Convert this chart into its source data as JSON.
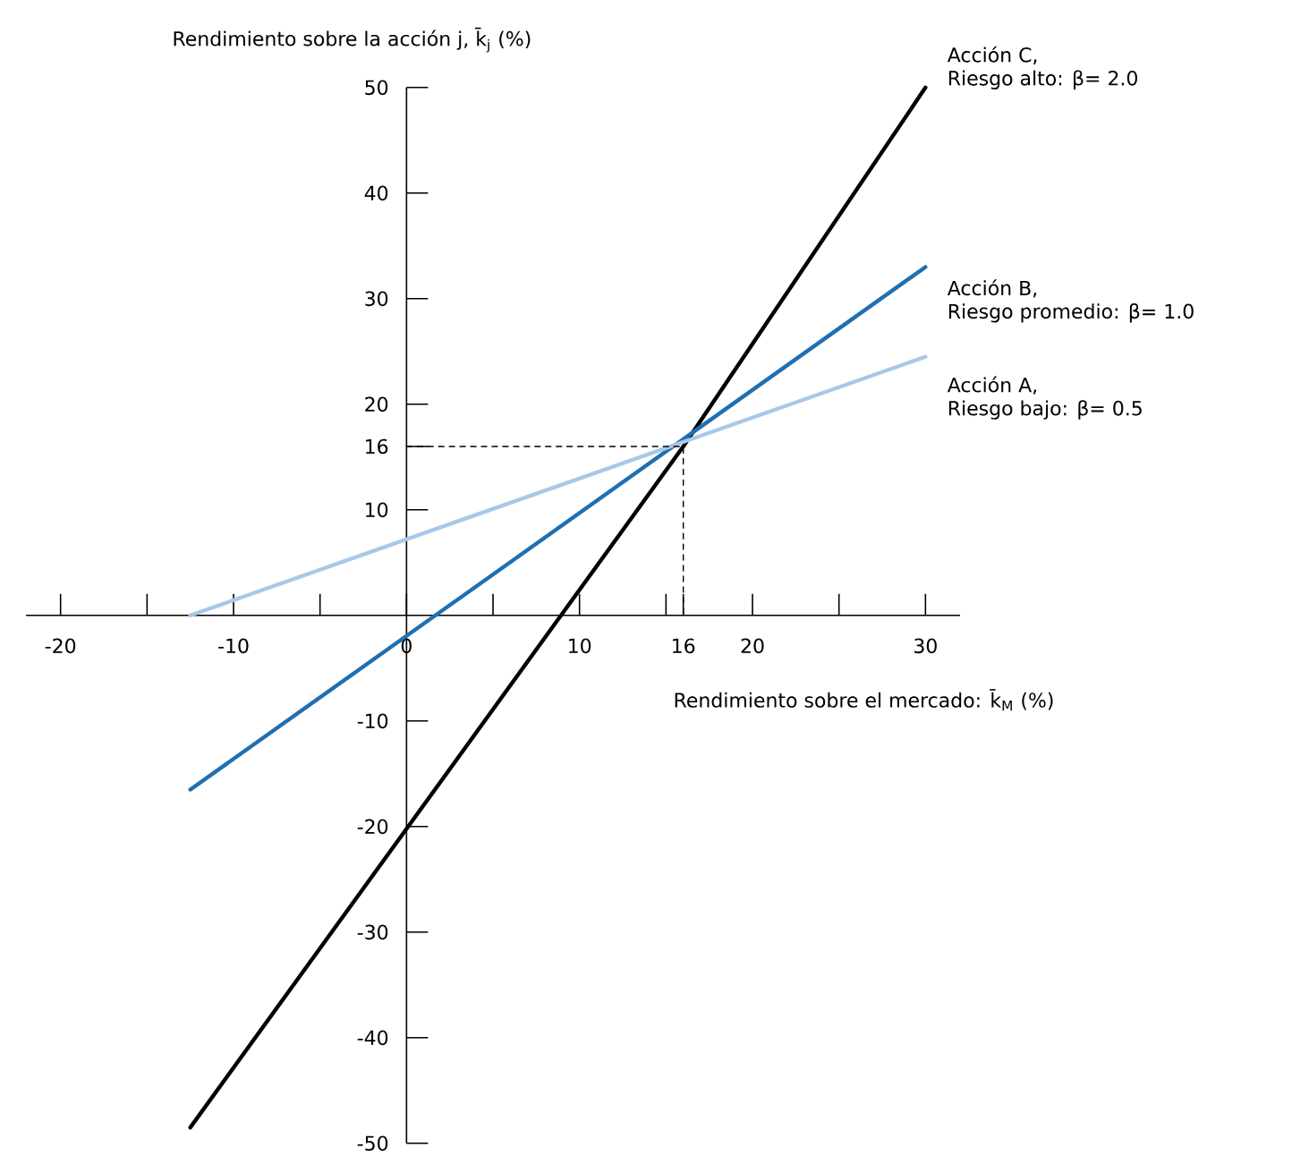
{
  "chart_data": {
    "type": "line",
    "xlabel": "Rendimiento sobre el mercado: k̄$_{M}$ (%)",
    "ylabel": "Rendimiento sobre la acción j, k̄$_{j}$ (%)",
    "xlim": [
      -22,
      32
    ],
    "ylim": [
      -50,
      50
    ],
    "xticks": [
      -20,
      {
        "value": -15,
        "label": null
      },
      -10,
      {
        "value": -5,
        "label": null
      },
      0,
      {
        "value": 5,
        "label": null
      },
      10,
      {
        "value": 15,
        "label": null
      },
      16,
      20,
      {
        "value": 25,
        "label": null
      },
      30
    ],
    "yticks": [
      -50,
      -40,
      -30,
      -20,
      -10,
      10,
      16,
      20,
      30,
      40,
      50
    ],
    "series": [
      {
        "name": "Acción C,",
        "color": "#000000",
        "x": [
          -12.5,
          16,
          30
        ],
        "values": [
          -48.5,
          16,
          50
        ]
      },
      {
        "name": "Acción B,",
        "color": "#1f6fb2",
        "x": [
          -12.5,
          30
        ],
        "values": [
          -16.5,
          33
        ]
      },
      {
        "name": "Acción A,",
        "color": "#a9c8e8",
        "x": [
          -12.5,
          30
        ],
        "values": [
          0,
          24.5
        ]
      },
      {
        "color": "#000000",
        "line_style": "dashed",
        "x": [
          0,
          16,
          16
        ],
        "values": [
          16,
          16,
          0
        ]
      }
    ],
    "annotations": [
      "Riesgo alto: β= 2.0",
      "Riesgo promedio: β= 1.0",
      "Riesgo bajo: β= 0.5"
    ],
    "grid": false,
    "legend": false,
    "marker": "none",
    "line_style": "solid"
  }
}
